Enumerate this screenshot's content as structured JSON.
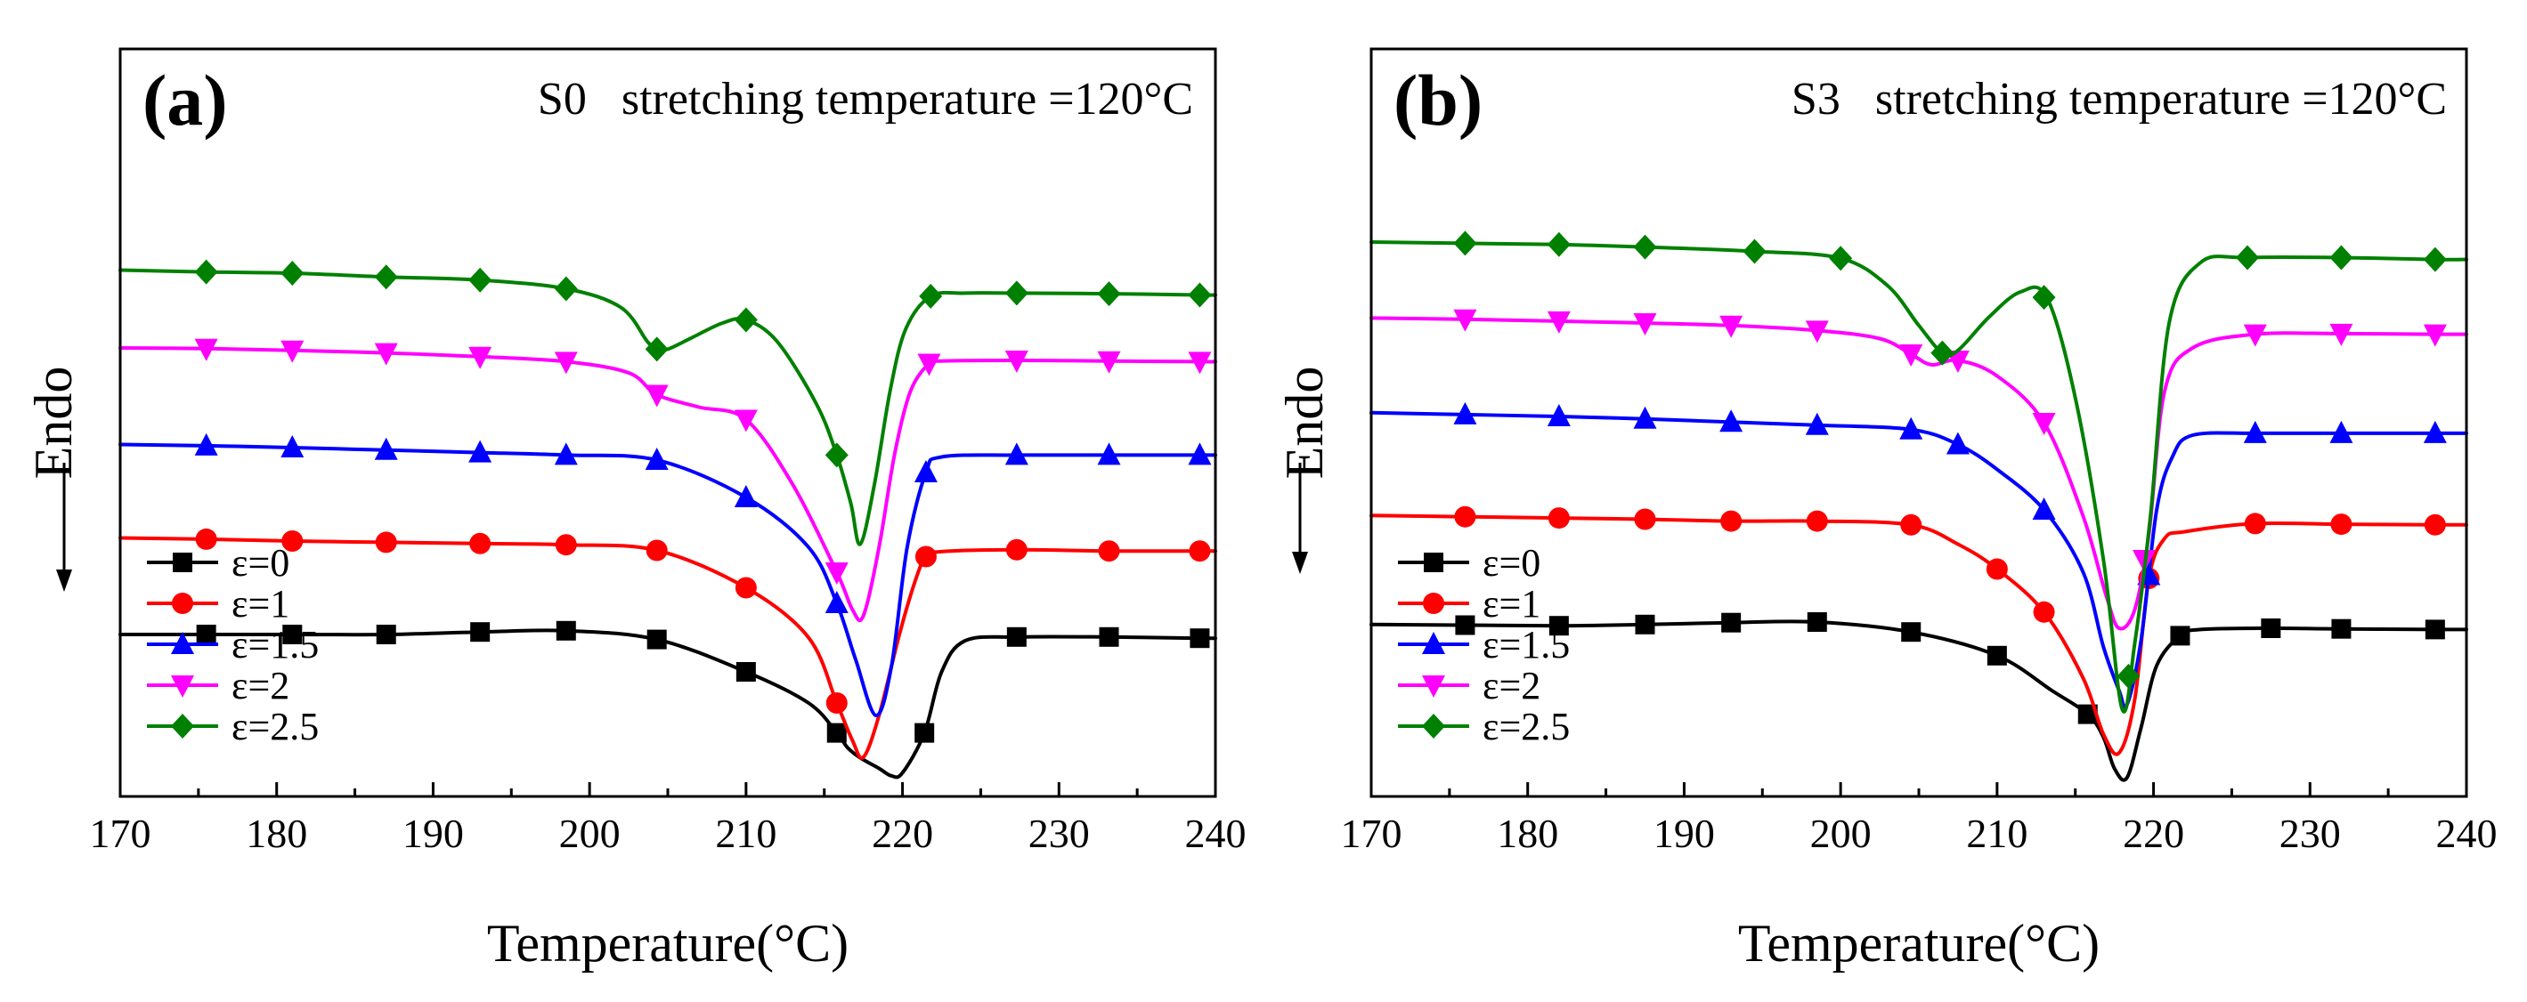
{
  "figure": {
    "x_axis_title": "Temperature(°C)",
    "y_axis_title": "Endo",
    "x_tick_labels": [
      "170",
      "180",
      "190",
      "200",
      "210",
      "220",
      "230",
      "240"
    ]
  },
  "chart_data": [
    {
      "type": "line",
      "panel_label": "(a)",
      "title": "S0   stretching temperature =120°C",
      "xlabel": "Temperature(°C)",
      "ylabel": "Endo",
      "xlim": [
        170,
        240
      ],
      "ylim": [
        0,
        100
      ],
      "grid": false,
      "legend_position": "bottom-left",
      "series": [
        {
          "name": "ε=0",
          "color": "#000000",
          "marker": "square",
          "x": [
            170,
            175.5,
            181,
            187,
            193,
            198.5,
            204.3,
            210,
            214,
            215.8,
            216.5,
            217.3,
            218.5,
            219.3,
            220,
            221.4,
            222.5,
            224,
            227.3,
            233.2,
            239,
            240
          ],
          "y": [
            26,
            26,
            26,
            26,
            26.4,
            26.6,
            25.2,
            20,
            15,
            10.2,
            7.8,
            6.2,
            4.5,
            3.3,
            3.8,
            10.2,
            20,
            25,
            25.6,
            25.6,
            25.4,
            25.4
          ],
          "markers_x": [
            175.5,
            181,
            187,
            193,
            198.5,
            204.3,
            210,
            215.8,
            221.4,
            227.3,
            233.2,
            239
          ]
        },
        {
          "name": "ε=1",
          "color": "#ff0000",
          "marker": "circle",
          "x": [
            170,
            175.5,
            181,
            187,
            193,
            198.5,
            204.3,
            210,
            214,
            215.8,
            216.8,
            217.5,
            218.5,
            219.8,
            220.8,
            221.5,
            222.5,
            227.3,
            233.2,
            239,
            240
          ],
          "y": [
            41.5,
            41.3,
            41,
            40.8,
            40.6,
            40.4,
            39.5,
            33.5,
            25.5,
            15,
            9,
            6.3,
            13,
            26,
            34.5,
            38.5,
            39.3,
            39.6,
            39.4,
            39.4,
            39.4
          ],
          "markers_x": [
            175.5,
            181,
            187,
            193,
            198.5,
            204.3,
            210,
            215.8,
            221.5,
            227.3,
            233.2,
            239
          ]
        },
        {
          "name": "ε=1.5",
          "color": "#0000ff",
          "marker": "triangle-up",
          "x": [
            170,
            175.5,
            181,
            187,
            193,
            198.5,
            204.3,
            210,
            214,
            215.8,
            217,
            218.3,
            219.3,
            220.3,
            221.5,
            222.5,
            227.3,
            233.2,
            239,
            240
          ],
          "y": [
            56.5,
            56.3,
            56,
            55.6,
            55.2,
            54.8,
            54,
            48,
            40,
            31,
            22,
            13,
            21,
            40,
            52,
            54.5,
            54.8,
            54.8,
            54.8,
            54.8
          ],
          "markers_x": [
            175.5,
            181,
            187,
            193,
            198.5,
            204.3,
            210,
            215.8,
            221.5,
            227.3,
            233.2,
            239
          ]
        },
        {
          "name": "ε=2",
          "color": "#ff00ff",
          "marker": "triangle-down",
          "x": [
            170,
            175.5,
            181,
            187,
            193,
            198.5,
            202.5,
            204.3,
            207,
            210,
            213,
            215.8,
            216.8,
            217.5,
            218.5,
            219.5,
            220.5,
            221.7,
            222.5,
            227.3,
            233.2,
            239,
            240
          ],
          "y": [
            72,
            71.9,
            71.6,
            71.2,
            70.6,
            69.8,
            68,
            64.5,
            62.5,
            60.5,
            50,
            36,
            30,
            29,
            40,
            55,
            65,
            69.5,
            69.9,
            70,
            69.9,
            69.8,
            69.8
          ],
          "markers_x": [
            175.5,
            181,
            187,
            193,
            198.5,
            204.3,
            210,
            215.8,
            221.7,
            227.3,
            233.2,
            239
          ]
        },
        {
          "name": "ε=2.5",
          "color": "#008000",
          "marker": "diamond",
          "x": [
            170,
            175.5,
            181,
            187,
            193,
            198.5,
            202,
            203.7,
            204.3,
            205,
            206.5,
            208.5,
            210,
            212,
            214.5,
            215.8,
            216.7,
            217.3,
            218.2,
            219.2,
            220.2,
            221.8,
            224,
            227.3,
            233.2,
            239,
            240
          ],
          "y": [
            84.5,
            84.2,
            84,
            83.4,
            82.9,
            81.5,
            78.5,
            73,
            71.8,
            71.8,
            73.6,
            76,
            76.5,
            73,
            63,
            54.8,
            47,
            40.5,
            50,
            65,
            75,
            80.3,
            80.8,
            80.8,
            80.7,
            80.5,
            80.5
          ],
          "markers_x": [
            175.5,
            181,
            187,
            193,
            198.5,
            204.3,
            210,
            215.8,
            221.8,
            227.3,
            233.2,
            239
          ]
        }
      ],
      "legend": [
        "ε=0",
        "ε=1",
        "ε=1.5",
        "ε=2",
        "ε=2.5"
      ]
    },
    {
      "type": "line",
      "panel_label": "(b)",
      "title": "S3   stretching temperature =120°C",
      "xlabel": "Temperature(°C)",
      "ylabel": "Endo",
      "xlim": [
        170,
        240
      ],
      "ylim": [
        0,
        100
      ],
      "grid": false,
      "legend_position": "bottom-left",
      "series": [
        {
          "name": "ε=0",
          "color": "#000000",
          "marker": "square",
          "x": [
            170,
            176,
            182,
            187.5,
            193,
            198.5,
            204.5,
            210,
            213.5,
            215.8,
            216.8,
            217.5,
            218.3,
            219.2,
            220.2,
            221.7,
            223,
            227.5,
            232,
            238,
            240
          ],
          "y": [
            27.6,
            27.5,
            27.4,
            27.6,
            27.9,
            28,
            26.4,
            22.6,
            17,
            13.2,
            9.5,
            4.5,
            3,
            11,
            21,
            25.8,
            26.8,
            27,
            26.9,
            26.8,
            26.8
          ],
          "markers_x": [
            176,
            182,
            187.5,
            193,
            198.5,
            204.5,
            210,
            215.8,
            221.7,
            227.5,
            232,
            238
          ]
        },
        {
          "name": "ε=1",
          "color": "#ff0000",
          "marker": "circle",
          "x": [
            170,
            176,
            182,
            187.5,
            193,
            198.5,
            204.5,
            207.5,
            210,
            213,
            215.5,
            216.8,
            217.8,
            218.8,
            219.7,
            220.7,
            222,
            226.5,
            232,
            238,
            240
          ],
          "y": [
            45.1,
            44.9,
            44.7,
            44.5,
            44.2,
            44.2,
            43.6,
            40.5,
            36.5,
            29.6,
            19,
            10,
            7,
            15.6,
            35,
            41.4,
            42.5,
            43.8,
            43.7,
            43.6,
            43.6
          ],
          "markers_x": [
            176,
            182,
            187.5,
            193,
            198.5,
            204.5,
            210,
            213,
            219.7,
            226.5,
            232,
            238
          ]
        },
        {
          "name": "ε=1.5",
          "color": "#0000ff",
          "marker": "triangle-up",
          "x": [
            170,
            176,
            182,
            187.5,
            193,
            198.5,
            204.5,
            207.5,
            210,
            213,
            215.5,
            216.8,
            217.8,
            218.3,
            219.2,
            220.2,
            221.2,
            222.5,
            226.5,
            232,
            238,
            240
          ],
          "y": [
            61.6,
            61.3,
            61,
            60.6,
            60.1,
            59.6,
            58.9,
            56.5,
            52.5,
            46,
            36,
            24,
            17,
            14.7,
            25,
            46,
            54.5,
            58,
            58.3,
            58.3,
            58.3,
            58.3
          ],
          "markers_x": [
            176,
            182,
            187.5,
            193,
            198.5,
            204.5,
            207.5,
            213,
            219.7,
            226.5,
            232,
            238
          ]
        },
        {
          "name": "ε=2",
          "color": "#ff00ff",
          "marker": "triangle-down",
          "x": [
            170,
            176,
            182,
            187.5,
            193,
            198.5,
            202.5,
            204.5,
            205.8,
            207.5,
            210,
            213,
            215.5,
            217,
            217.8,
            218.8,
            219.7,
            220.7,
            222.5,
            226.5,
            232,
            238,
            240
          ],
          "y": [
            76.8,
            76.6,
            76.3,
            76,
            75.6,
            74.8,
            73.5,
            71,
            69.3,
            70,
            67.5,
            60,
            45,
            32,
            27,
            30,
            42,
            65,
            72,
            74.2,
            74.3,
            74.2,
            74.2
          ],
          "markers_x": [
            176,
            182,
            187.5,
            193,
            198.5,
            204.5,
            207.5,
            213,
            219.4,
            226.5,
            232,
            238
          ]
        },
        {
          "name": "ε=2.5",
          "color": "#008000",
          "marker": "diamond",
          "x": [
            170,
            176,
            182,
            187.5,
            194.5,
            200,
            203,
            205,
            206.5,
            207.5,
            209.5,
            211.5,
            213.2,
            215,
            216.8,
            218,
            218.8,
            219.8,
            221,
            223,
            226,
            232,
            238,
            240
          ],
          "y": [
            89,
            88.8,
            88.6,
            88.2,
            87.5,
            86.4,
            82,
            75.6,
            71.2,
            71.6,
            77,
            81,
            80,
            64,
            38,
            14,
            24.6,
            45,
            76,
            85.7,
            86.5,
            86.5,
            86.2,
            86.2
          ],
          "markers_x": [
            176,
            182,
            187.5,
            194.5,
            200,
            206.5,
            213,
            218.4,
            226,
            232,
            238
          ]
        }
      ],
      "legend": [
        "ε=0",
        "ε=1",
        "ε=1.5",
        "ε=2",
        "ε=2.5"
      ]
    }
  ]
}
